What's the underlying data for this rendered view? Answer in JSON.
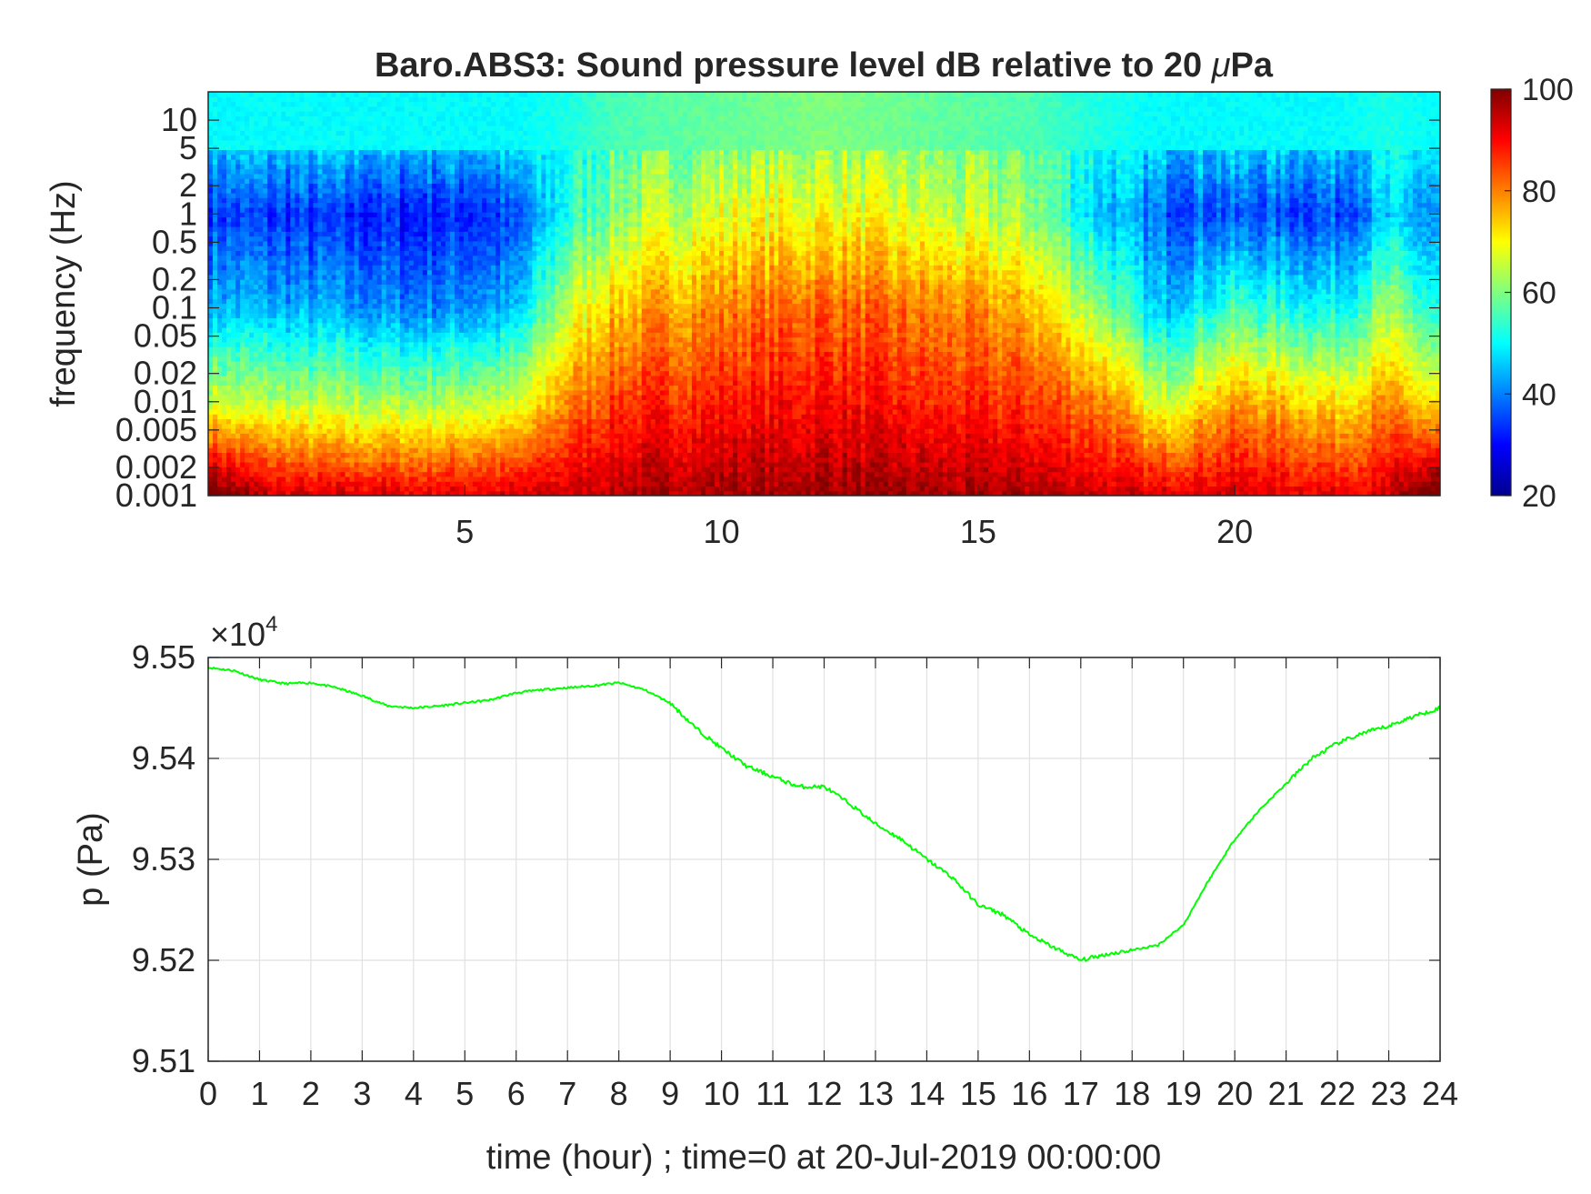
{
  "chart_data": [
    {
      "type": "heatmap",
      "title": "Baro.ABS3: Sound pressure level dB relative to 20 μPa",
      "title_parts": {
        "before": "Baro.ABS3: Sound pressure level dB relative to 20 ",
        "mu": "μ",
        "after": "Pa"
      },
      "ylabel": "frequency (Hz)",
      "xlim": [
        0,
        24
      ],
      "xticks": [
        5,
        10,
        15,
        20
      ],
      "ylim": [
        0.001,
        20
      ],
      "yscale": "log",
      "yticks": [
        {
          "value": 0.001,
          "label": "0.001"
        },
        {
          "value": 0.002,
          "label": "0.002"
        },
        {
          "value": 0.005,
          "label": "0.005"
        },
        {
          "value": 0.01,
          "label": "0.01"
        },
        {
          "value": 0.02,
          "label": "0.02"
        },
        {
          "value": 0.05,
          "label": "0.05"
        },
        {
          "value": 0.1,
          "label": "0.1"
        },
        {
          "value": 0.2,
          "label": "0.2"
        },
        {
          "value": 0.5,
          "label": "0.5"
        },
        {
          "value": 1,
          "label": "1"
        },
        {
          "value": 2,
          "label": "2"
        },
        {
          "value": 5,
          "label": "5"
        },
        {
          "value": 10,
          "label": "10"
        }
      ],
      "colormap": "jet",
      "clim": [
        20,
        100
      ],
      "colorbar_ticks": [
        20,
        40,
        60,
        80,
        100
      ],
      "level_profile_db": {
        "hours": [
          0,
          2,
          4,
          6,
          7,
          8,
          10,
          12,
          14,
          16,
          17.5,
          18.5,
          20,
          22,
          23,
          24
        ],
        "at_0.001Hz": [
          95,
          93,
          92,
          93,
          94,
          96,
          97,
          98,
          97,
          96,
          94,
          93,
          93,
          92,
          92,
          95
        ],
        "at_0.01Hz": [
          66,
          64,
          63,
          66,
          80,
          86,
          88,
          90,
          87,
          86,
          80,
          66,
          78,
          72,
          78,
          70
        ],
        "at_0.1Hz": [
          45,
          43,
          40,
          44,
          66,
          75,
          80,
          83,
          80,
          76,
          60,
          45,
          55,
          50,
          62,
          50
        ],
        "at_1Hz": [
          35,
          33,
          32,
          34,
          52,
          62,
          68,
          70,
          66,
          62,
          45,
          38,
          36,
          36,
          45,
          40
        ],
        "at_10Hz": [
          50,
          50,
          50,
          50,
          52,
          56,
          58,
          60,
          58,
          56,
          52,
          50,
          50,
          50,
          52,
          50
        ]
      }
    },
    {
      "type": "line",
      "ylabel": "p (Pa)",
      "xlabel": "time (hour) ; time=0 at 20-Jul-2019 00:00:00",
      "xlim": [
        0,
        24
      ],
      "xticks": [
        0,
        1,
        2,
        3,
        4,
        5,
        6,
        7,
        8,
        9,
        10,
        11,
        12,
        13,
        14,
        15,
        16,
        17,
        18,
        19,
        20,
        21,
        22,
        23,
        24
      ],
      "ylim": [
        95100,
        95500
      ],
      "yticks": [
        {
          "value": 95100,
          "label": "9.51"
        },
        {
          "value": 95200,
          "label": "9.52"
        },
        {
          "value": 95300,
          "label": "9.53"
        },
        {
          "value": 95400,
          "label": "9.54"
        },
        {
          "value": 95500,
          "label": "9.55"
        }
      ],
      "exponent_label": {
        "base": "×10",
        "exp": "4"
      },
      "grid": true,
      "color": "#00ff00",
      "series": [
        {
          "x": [
            0,
            0.5,
            1,
            1.5,
            2,
            2.5,
            3,
            3.5,
            4,
            4.5,
            5,
            5.5,
            6,
            6.5,
            7,
            7.5,
            8,
            8.5,
            9,
            9.5,
            10,
            10.5,
            11,
            11.5,
            12,
            12.5,
            13,
            13.5,
            14,
            14.5,
            15,
            15.5,
            16,
            16.5,
            17,
            17.5,
            18,
            18.5,
            19,
            19.5,
            20,
            20.5,
            21,
            21.5,
            22,
            22.5,
            23,
            23.5,
            24
          ],
          "y": [
            95490,
            95487,
            95478,
            95474,
            95475,
            95470,
            95462,
            95452,
            95450,
            95452,
            95455,
            95458,
            95465,
            95468,
            95470,
            95472,
            95475,
            95468,
            95455,
            95430,
            95410,
            95392,
            95382,
            95372,
            95372,
            95355,
            95335,
            95320,
            95300,
            95282,
            95255,
            95245,
            95225,
            95212,
            95200,
            95206,
            95210,
            95215,
            95235,
            95280,
            95320,
            95350,
            95375,
            95400,
            95415,
            95425,
            95432,
            95442,
            95450
          ]
        }
      ]
    }
  ]
}
